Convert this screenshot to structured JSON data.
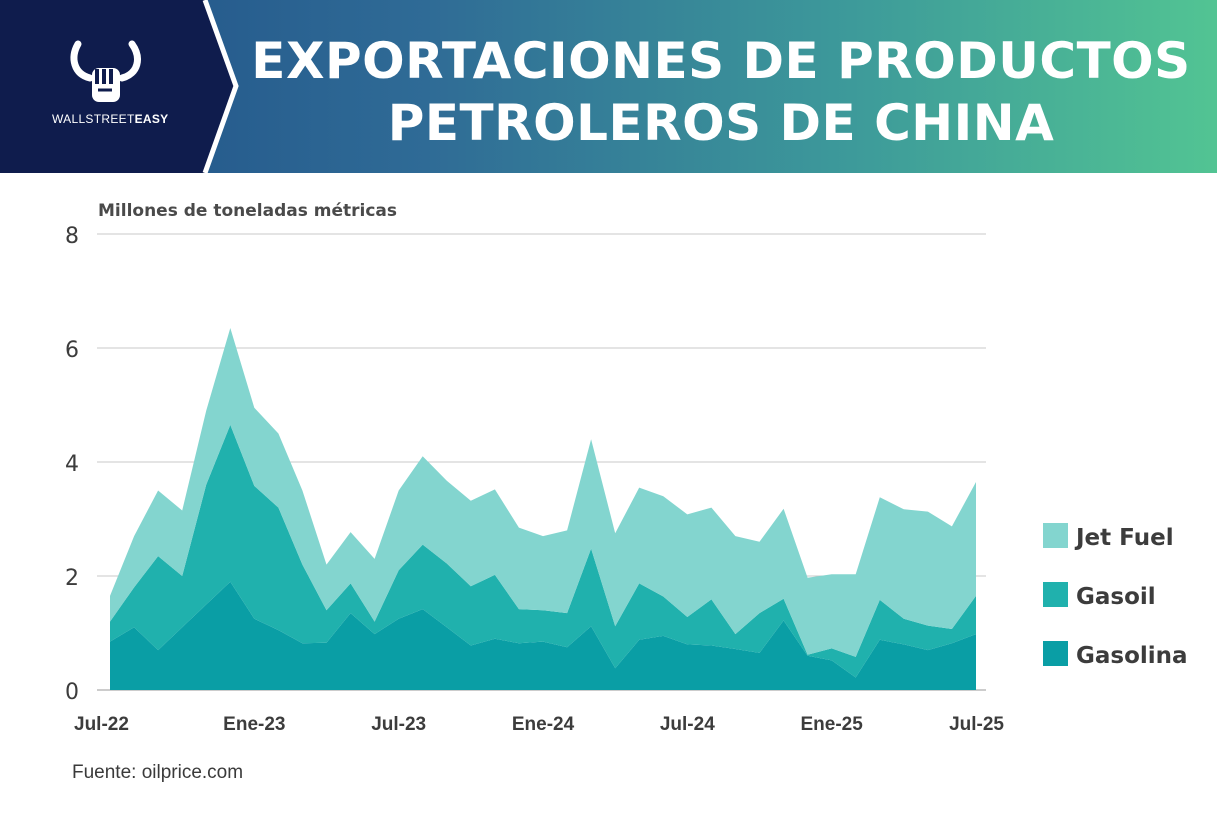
{
  "header": {
    "brand_left": "WALLSTREET",
    "brand_right": "EASY",
    "title_line1": "EXPORTACIONES DE PRODUCTOS",
    "title_line2": "PETROLEROS DE CHINA"
  },
  "chart_data": {
    "type": "area",
    "stacked": true,
    "ylabel": "Millones de toneladas métricas",
    "ylim": [
      0,
      8
    ],
    "yticks": [
      0,
      2,
      4,
      6,
      8
    ],
    "grid": true,
    "legend_position": "right",
    "x_start": "2022-07",
    "x_end": "2025-07",
    "xticks": [
      {
        "date": "2022-07",
        "label": "Jul-22"
      },
      {
        "date": "2023-01",
        "label": "Ene-23"
      },
      {
        "date": "2023-07",
        "label": "Jul-23"
      },
      {
        "date": "2024-01",
        "label": "Ene-24"
      },
      {
        "date": "2024-07",
        "label": "Jul-24"
      },
      {
        "date": "2025-01",
        "label": "Ene-25"
      },
      {
        "date": "2025-07",
        "label": "Jul-25"
      }
    ],
    "x": [
      "2022-07",
      "2022-08",
      "2022-09",
      "2022-10",
      "2022-11",
      "2022-12",
      "2023-01",
      "2023-02",
      "2023-03",
      "2023-04",
      "2023-05",
      "2023-06",
      "2023-07",
      "2023-08",
      "2023-09",
      "2023-10",
      "2023-11",
      "2023-12",
      "2024-01",
      "2024-02",
      "2024-03",
      "2024-04",
      "2024-05",
      "2024-06",
      "2024-07",
      "2024-08",
      "2024-09",
      "2024-10",
      "2024-11",
      "2024-12",
      "2025-01",
      "2025-02",
      "2025-03",
      "2025-04",
      "2025-05",
      "2025-06",
      "2025-07"
    ],
    "series": [
      {
        "name": "Gasolina",
        "color": "#0a9ea5",
        "values": [
          0.85,
          1.1,
          0.7,
          1.1,
          1.5,
          1.9,
          1.25,
          1.05,
          0.82,
          0.83,
          1.35,
          0.98,
          1.25,
          1.42,
          1.1,
          0.78,
          0.9,
          0.82,
          0.85,
          0.75,
          1.12,
          0.38,
          0.88,
          0.95,
          0.8,
          0.78,
          0.72,
          0.65,
          1.22,
          0.6,
          0.52,
          0.22,
          0.88,
          0.8,
          0.7,
          0.82,
          0.98
        ]
      },
      {
        "name": "Gasoil",
        "color": "#20b1ad",
        "values": [
          0.35,
          0.7,
          1.65,
          0.9,
          2.1,
          2.75,
          2.33,
          2.15,
          1.38,
          0.57,
          0.52,
          0.22,
          0.85,
          1.13,
          1.12,
          1.04,
          1.12,
          0.6,
          0.55,
          0.6,
          1.36,
          0.74,
          0.99,
          0.69,
          0.48,
          0.81,
          0.26,
          0.7,
          0.38,
          0.02,
          0.21,
          0.36,
          0.7,
          0.45,
          0.43,
          0.25,
          0.67
        ]
      },
      {
        "name": "Jet Fuel",
        "color": "#83d5cf",
        "values": [
          0.45,
          0.9,
          1.15,
          1.15,
          1.3,
          1.7,
          1.37,
          1.3,
          1.3,
          0.8,
          0.9,
          1.1,
          1.4,
          1.55,
          1.45,
          1.5,
          1.5,
          1.43,
          1.3,
          1.45,
          1.92,
          1.63,
          1.68,
          1.76,
          1.8,
          1.61,
          1.72,
          1.25,
          1.58,
          1.35,
          1.3,
          1.45,
          1.8,
          1.92,
          2.0,
          1.8,
          2.0
        ]
      }
    ]
  },
  "footer": {
    "source": "Fuente: oilprice.com"
  }
}
